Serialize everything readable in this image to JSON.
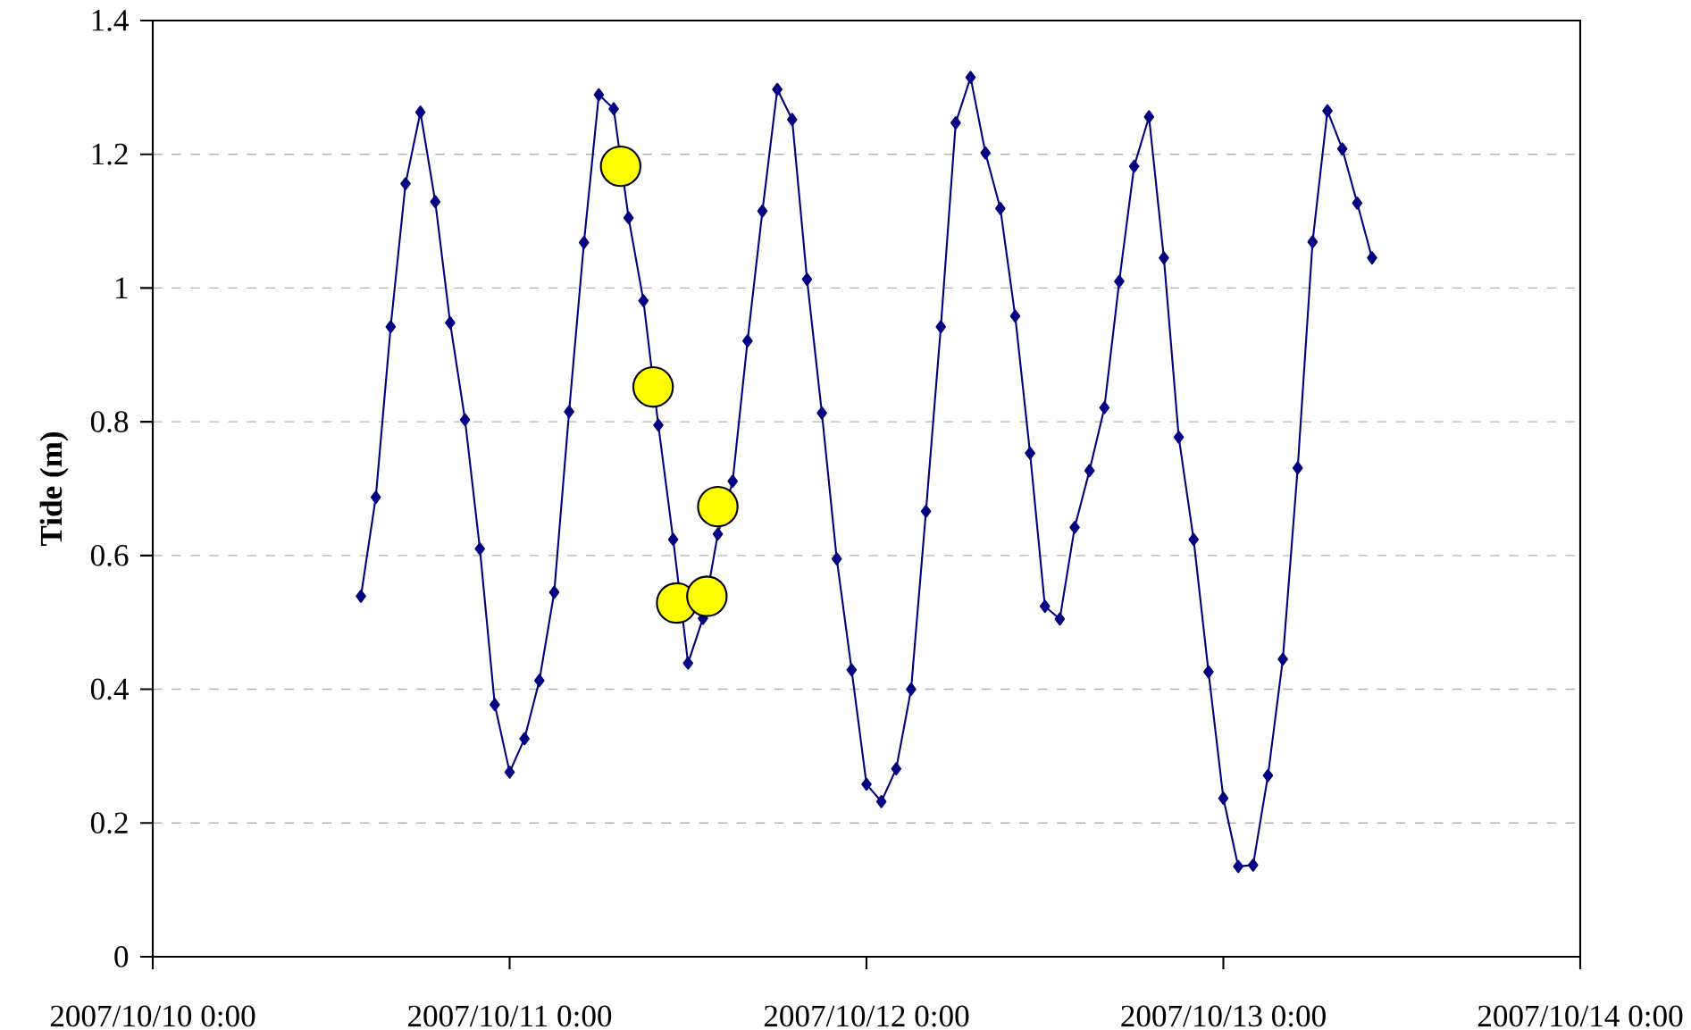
{
  "chart_data": {
    "type": "line",
    "ylabel": "Tide (m)",
    "xlim": [
      "2007-10-10T00:00",
      "2007-10-14T00:00"
    ],
    "xticks": [
      {
        "value": "2007-10-10T00:00",
        "label": "2007/10/10 0:00"
      },
      {
        "value": "2007-10-11T00:00",
        "label": "2007/10/11 0:00"
      },
      {
        "value": "2007-10-12T00:00",
        "label": "2007/10/12 0:00"
      },
      {
        "value": "2007-10-13T00:00",
        "label": "2007/10/13 0:00"
      },
      {
        "value": "2007-10-14T00:00",
        "label": "2007/10/14 0:00"
      }
    ],
    "ylim": [
      0,
      1.4
    ],
    "yticks": [
      0,
      0.2,
      0.4,
      0.6,
      0.8,
      1,
      1.2,
      1.4
    ],
    "grid": "y",
    "series": [
      {
        "color": "#000080",
        "marker": "diamond",
        "x": [
          "2007-10-10T14:00",
          "2007-10-10T15:00",
          "2007-10-10T16:00",
          "2007-10-10T17:00",
          "2007-10-10T18:00",
          "2007-10-10T19:00",
          "2007-10-10T20:00",
          "2007-10-10T21:00",
          "2007-10-10T22:00",
          "2007-10-10T23:00",
          "2007-10-11T00:00",
          "2007-10-11T01:00",
          "2007-10-11T02:00",
          "2007-10-11T03:00",
          "2007-10-11T04:00",
          "2007-10-11T05:00",
          "2007-10-11T06:00",
          "2007-10-11T07:00",
          "2007-10-11T08:00",
          "2007-10-11T09:00",
          "2007-10-11T10:00",
          "2007-10-11T11:00",
          "2007-10-11T12:00",
          "2007-10-11T13:00",
          "2007-10-11T14:00",
          "2007-10-11T15:00",
          "2007-10-11T16:00",
          "2007-10-11T17:00",
          "2007-10-11T18:00",
          "2007-10-11T19:00",
          "2007-10-11T20:00",
          "2007-10-11T21:00",
          "2007-10-11T22:00",
          "2007-10-11T23:00",
          "2007-10-12T00:00",
          "2007-10-12T01:00",
          "2007-10-12T02:00",
          "2007-10-12T03:00",
          "2007-10-12T04:00",
          "2007-10-12T05:00",
          "2007-10-12T06:00",
          "2007-10-12T07:00",
          "2007-10-12T08:00",
          "2007-10-12T09:00",
          "2007-10-12T10:00",
          "2007-10-12T11:00",
          "2007-10-12T12:00",
          "2007-10-12T13:00",
          "2007-10-12T14:00",
          "2007-10-12T15:00",
          "2007-10-12T16:00",
          "2007-10-12T17:00",
          "2007-10-12T18:00",
          "2007-10-12T19:00",
          "2007-10-12T20:00",
          "2007-10-12T21:00",
          "2007-10-12T22:00",
          "2007-10-12T23:00",
          "2007-10-13T00:00",
          "2007-10-13T01:00",
          "2007-10-13T02:00",
          "2007-10-13T03:00",
          "2007-10-13T04:00",
          "2007-10-13T05:00",
          "2007-10-13T06:00",
          "2007-10-13T07:00",
          "2007-10-13T08:00",
          "2007-10-13T09:00",
          "2007-10-13T10:00"
        ],
        "values": [
          0.539,
          0.687,
          0.942,
          1.156,
          1.263,
          1.129,
          0.948,
          0.803,
          0.61,
          0.377,
          0.276,
          0.326,
          0.413,
          0.545,
          0.815,
          1.068,
          1.289,
          1.268,
          1.105,
          0.981,
          0.795,
          0.624,
          0.439,
          0.506,
          0.632,
          0.711,
          0.921,
          1.115,
          1.297,
          1.252,
          1.013,
          0.813,
          0.595,
          0.429,
          0.258,
          0.232,
          0.281,
          0.4,
          0.666,
          0.942,
          1.247,
          1.315,
          1.202,
          1.119,
          0.958,
          0.753,
          0.524,
          0.505,
          0.642,
          0.727,
          0.821,
          1.01,
          1.182,
          1.256,
          1.045,
          0.777,
          0.624,
          0.426,
          0.237,
          0.135,
          0.137,
          0.271,
          0.445,
          0.731,
          1.069,
          1.265,
          1.208,
          1.127,
          1.045
        ]
      },
      {
        "type": "scatter",
        "color": "#ffff00",
        "marker": "circle",
        "x": [
          "2007-10-11T07:28",
          "2007-10-11T09:39",
          "2007-10-11T11:14",
          "2007-10-11T13:16",
          "2007-10-11T14:00"
        ],
        "values": [
          1.182,
          0.852,
          0.529,
          0.539,
          0.673
        ]
      }
    ]
  }
}
